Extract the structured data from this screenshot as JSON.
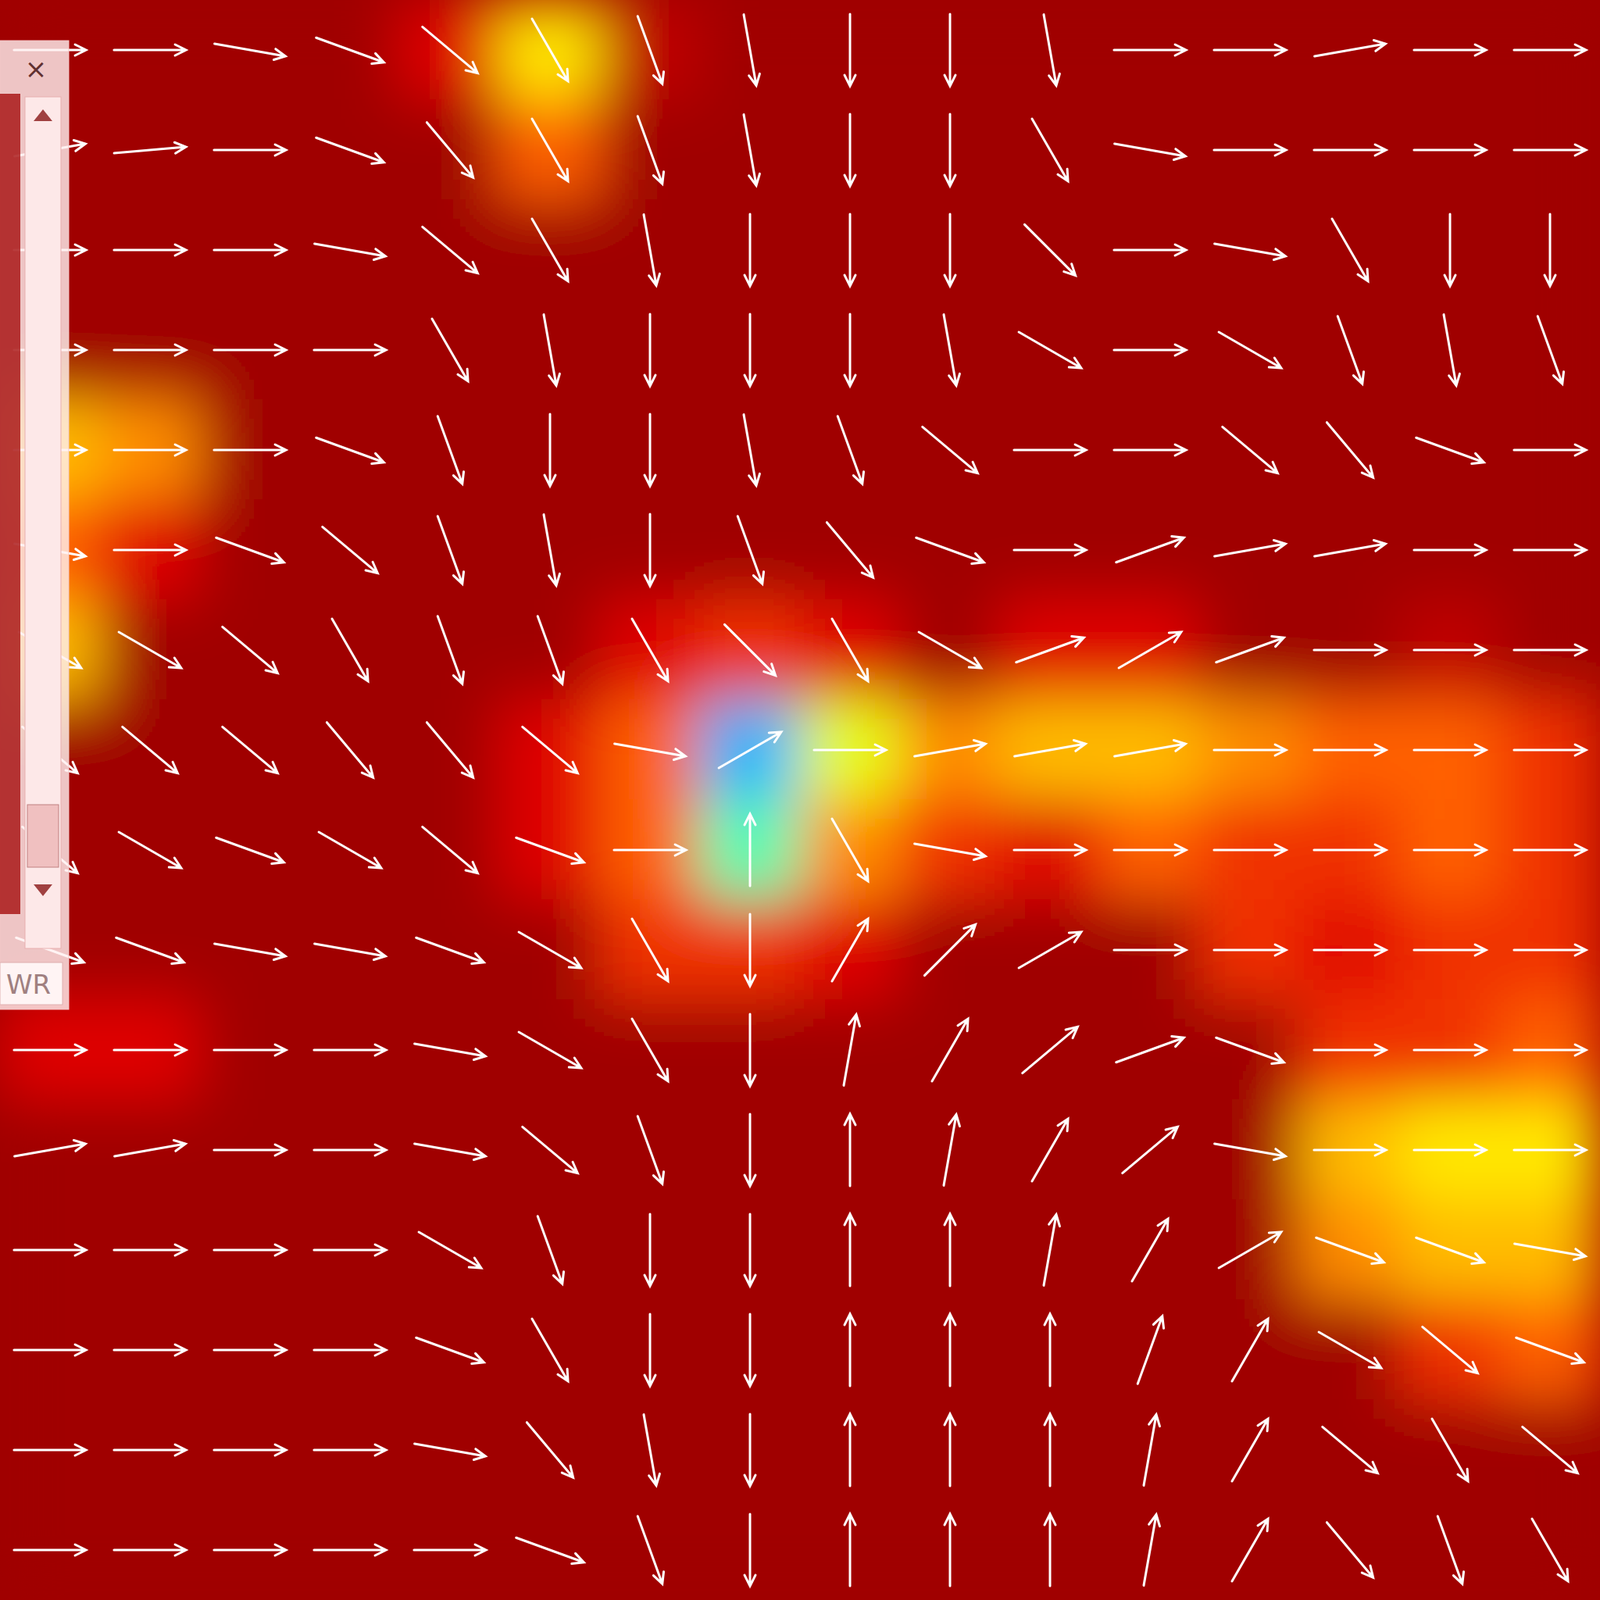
{
  "chart_data": {
    "type": "quiver",
    "cells": [
      [
        1,
        1,
        1,
        1,
        0.9,
        0.65,
        0.95,
        1,
        1,
        1,
        1,
        1,
        1,
        1,
        1,
        1
      ],
      [
        1,
        1,
        1,
        1,
        1,
        0.8,
        1,
        1,
        1,
        1,
        1,
        1,
        1,
        1,
        1,
        1
      ],
      [
        1,
        1,
        1,
        1,
        1,
        1,
        1,
        1,
        1,
        1,
        1,
        1,
        1,
        1,
        1,
        1
      ],
      [
        1,
        1,
        1,
        1,
        1,
        1,
        1,
        1,
        1,
        1,
        1,
        1,
        1,
        1,
        1,
        1
      ],
      [
        0.7,
        0.75,
        1,
        1,
        1,
        1,
        1,
        1,
        1,
        1,
        1,
        1,
        1,
        1,
        1,
        1
      ],
      [
        0.8,
        0.9,
        1,
        1,
        1,
        1,
        1,
        1,
        1,
        1,
        1,
        1,
        1,
        1,
        1,
        1
      ],
      [
        0.7,
        1,
        1,
        1,
        1,
        1,
        0.9,
        0.85,
        0.9,
        1,
        0.9,
        0.9,
        1,
        1,
        0.95,
        1
      ],
      [
        1,
        1,
        1,
        1,
        1,
        0.9,
        0.8,
        0.3,
        0.6,
        0.75,
        0.7,
        0.7,
        0.75,
        0.8,
        0.8,
        0.85
      ],
      [
        1,
        1,
        1,
        1,
        1,
        0.9,
        0.8,
        0.45,
        0.75,
        0.85,
        0.9,
        0.8,
        0.85,
        0.85,
        0.8,
        0.85
      ],
      [
        1,
        1,
        1,
        1,
        1,
        1,
        0.85,
        0.85,
        0.9,
        1,
        1,
        1,
        0.85,
        0.9,
        0.85,
        0.85
      ],
      [
        0.9,
        0.9,
        1,
        1,
        1,
        1,
        1,
        1,
        1,
        1,
        1,
        1,
        1,
        0.85,
        0.85,
        0.8
      ],
      [
        1,
        1,
        1,
        1,
        1,
        1,
        1,
        1,
        1,
        1,
        1,
        1,
        1,
        0.7,
        0.65,
        0.65
      ],
      [
        1,
        1,
        1,
        1,
        1,
        1,
        1,
        1,
        1,
        1,
        1,
        1,
        1,
        0.75,
        0.7,
        0.7
      ],
      [
        1,
        1,
        1,
        1,
        1,
        1,
        1,
        1,
        1,
        1,
        1,
        1,
        1,
        1,
        0.85,
        0.8
      ],
      [
        1,
        1,
        1,
        1,
        1,
        1,
        1,
        1,
        1,
        1,
        1,
        1,
        1,
        1,
        1,
        1
      ],
      [
        1,
        1,
        1,
        1,
        1,
        1,
        1,
        1,
        1,
        1,
        1,
        1,
        1,
        1,
        1,
        1
      ]
    ],
    "color_range": [
      0,
      1
    ],
    "vectors": {
      "angles": [
        [
          0,
          0,
          -10,
          -20,
          -40,
          -60,
          -70,
          -80,
          -90,
          -90,
          -80,
          0,
          0,
          10,
          0,
          0
        ],
        [
          10,
          5,
          0,
          -20,
          -50,
          -60,
          -70,
          -80,
          -90,
          -90,
          -60,
          -10,
          0,
          0,
          0,
          0
        ],
        [
          0,
          0,
          0,
          -10,
          -40,
          -60,
          -80,
          -90,
          -90,
          -90,
          -45,
          0,
          -10,
          -60,
          -90,
          -90
        ],
        [
          0,
          0,
          0,
          0,
          -60,
          -80,
          -90,
          -90,
          -90,
          -80,
          -30,
          0,
          -30,
          -70,
          -80,
          -70
        ],
        [
          0,
          0,
          0,
          -20,
          -70,
          -90,
          -90,
          -80,
          -70,
          -40,
          0,
          0,
          -40,
          -50,
          -20,
          0
        ],
        [
          -10,
          0,
          -20,
          -40,
          -70,
          -80,
          -90,
          -70,
          -50,
          -20,
          0,
          20,
          10,
          10,
          0,
          0
        ],
        [
          -30,
          -30,
          -40,
          -60,
          -70,
          -70,
          -60,
          -45,
          -60,
          -30,
          20,
          30,
          20,
          0,
          0,
          0
        ],
        [
          -40,
          -40,
          -40,
          -50,
          -50,
          -40,
          -10,
          30,
          0,
          10,
          10,
          10,
          0,
          0,
          0,
          0
        ],
        [
          -40,
          -30,
          -20,
          -30,
          -40,
          -20,
          0,
          90,
          -60,
          -10,
          0,
          0,
          0,
          0,
          0,
          0
        ],
        [
          -20,
          -20,
          -10,
          -10,
          -20,
          -30,
          -60,
          -90,
          60,
          45,
          30,
          0,
          0,
          0,
          0,
          0
        ],
        [
          0,
          0,
          0,
          0,
          -10,
          -30,
          -60,
          -90,
          80,
          60,
          40,
          20,
          -20,
          0,
          0,
          0
        ],
        [
          10,
          10,
          0,
          0,
          -10,
          -40,
          -70,
          -90,
          90,
          80,
          60,
          40,
          -10,
          0,
          0,
          0
        ],
        [
          0,
          0,
          0,
          0,
          -30,
          -70,
          -90,
          -90,
          90,
          90,
          80,
          60,
          30,
          -20,
          -20,
          -10
        ],
        [
          0,
          0,
          0,
          0,
          -20,
          -60,
          -90,
          -90,
          90,
          90,
          90,
          70,
          60,
          -30,
          -40,
          -20
        ],
        [
          0,
          0,
          0,
          0,
          -10,
          -50,
          -80,
          -90,
          90,
          90,
          90,
          80,
          60,
          -40,
          -60,
          -40
        ],
        [
          0,
          0,
          0,
          0,
          0,
          -20,
          -70,
          -90,
          90,
          90,
          90,
          80,
          60,
          -50,
          -70,
          -60
        ]
      ]
    },
    "window": {
      "close": "×",
      "label": "WR"
    }
  }
}
